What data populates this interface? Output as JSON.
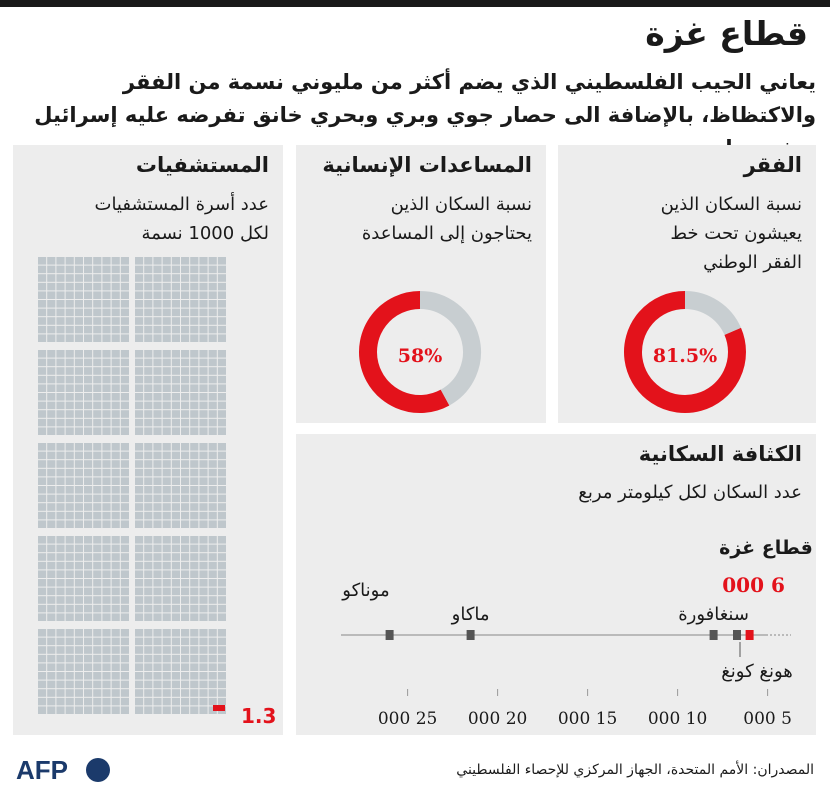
{
  "header": {
    "title": "قطاع غزة",
    "subtitle": "يعاني الجيب الفلسطيني الذي يضم أكثر من مليوني نسمة من الفقر والاكتظاظ، بالإضافة الى حصار جوي وبري وبحري خانق تفرضه عليه إسرائيل منذ سنوات"
  },
  "poverty": {
    "title": "الفقر",
    "desc_lines": [
      "نسبة السكان الذين",
      "يعيشون تحت خط",
      "الفقر الوطني"
    ],
    "value_label": "81.5%"
  },
  "aid": {
    "title": "المساعدات الإنسانية",
    "desc_lines": [
      "نسبة السكان الذين",
      "يحتاجون إلى المساعدة"
    ],
    "value_label": "58%"
  },
  "hospitals": {
    "title": "المستشفيات",
    "desc_lines": [
      "عدد أسرة المستشفيات",
      "لكل 1000 نسمة"
    ],
    "value_label": "1.3"
  },
  "density": {
    "title": "الكثافة السكانية",
    "desc": "عدد السكان لكل كيلومتر مربع",
    "highlight_name": "قطاع غزة",
    "highlight_value_label": "6 000"
  },
  "sources": "المصدران: الأمم المتحدة، الجهاز المركزي للإحصاء الفلسطيني",
  "logo": "AFP",
  "colors": {
    "highlight": "#e3121b",
    "remainder": "#c8ced1",
    "marker": "#555555",
    "panel": "#ededed"
  },
  "chart_data": [
    {
      "type": "pie",
      "title": "الفقر",
      "slices": [
        {
          "label": "نسبة السكان الذين يعيشون تحت خط الفقر الوطني",
          "value": 81.5
        },
        {
          "label": "",
          "value": 18.5
        }
      ]
    },
    {
      "type": "pie",
      "title": "المساعدات الإنسانية",
      "slices": [
        {
          "label": "نسبة السكان الذين يحتاجون إلى المساعدة",
          "value": 58
        },
        {
          "label": "",
          "value": 42
        }
      ]
    },
    {
      "type": "bar",
      "title": "المستشفيات",
      "categories": [
        "قطاع غزة"
      ],
      "values": [
        1.3
      ],
      "scale_max": 1000
    },
    {
      "type": "scatter",
      "title": "الكثافة السكانية",
      "points": [
        {
          "name": "موناكو",
          "value": 26000
        },
        {
          "name": "ماكاو",
          "value": 21500
        },
        {
          "name": "سنغافورة",
          "value": 8000
        },
        {
          "name": "هونغ كونغ",
          "value": 6700
        },
        {
          "name": "قطاع غزة",
          "value": 6000,
          "highlight": true
        }
      ],
      "x_ticks": [
        25000,
        20000,
        15000,
        10000,
        5000
      ],
      "x_tick_labels": [
        "25 000",
        "20 000",
        "15 000",
        "10 000",
        "5 000"
      ],
      "xlim": [
        28700,
        3700
      ]
    }
  ]
}
